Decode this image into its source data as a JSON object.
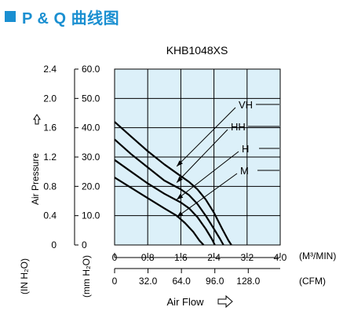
{
  "header": {
    "title": "P & Q 曲线图",
    "accent": "#1a8fd1"
  },
  "chart_data": {
    "type": "line",
    "title": "KHB1048XS",
    "plot_bg": "#dcf0f9",
    "grid": true,
    "xlabel": "Air Flow",
    "ylabel": "Air Pressure",
    "x_units": [
      "(M³/MIN)",
      "(CFM)"
    ],
    "y_units": [
      "(IN H₂O)",
      "(mm H₂O)"
    ],
    "x_ticks_m3min": [
      "0",
      "0.8",
      "1.6",
      "2.4",
      "3.2",
      "4.0"
    ],
    "x_ticks_cfm": [
      "0",
      "32.0",
      "64.0",
      "96.0",
      "128.0"
    ],
    "y_ticks_inh2o": [
      "0",
      "0.4",
      "0.8",
      "1.2",
      "1.6",
      "2.0",
      "2.4"
    ],
    "y_ticks_mmh2o": [
      "0",
      "10.0",
      "20.0",
      "30.0",
      "40.0",
      "50.0",
      "60.0"
    ],
    "xlim": [
      0,
      4.0
    ],
    "ylim": [
      0,
      60.0
    ],
    "series": [
      {
        "name": "VH",
        "x": [
          0,
          0.4,
          0.8,
          1.2,
          1.6,
          1.8,
          2.0,
          2.2,
          2.4,
          2.6,
          2.75,
          2.82
        ],
        "y": [
          42.0,
          37.0,
          32.0,
          27.5,
          23.5,
          21.5,
          19.0,
          15.5,
          11.0,
          5.5,
          1.5,
          0
        ]
      },
      {
        "name": "HH",
        "x": [
          0,
          0.4,
          0.8,
          1.2,
          1.6,
          1.8,
          2.0,
          2.2,
          2.4,
          2.55,
          2.63
        ],
        "y": [
          36.0,
          31.0,
          26.5,
          22.0,
          19.0,
          17.0,
          14.0,
          10.0,
          5.5,
          2.0,
          0
        ]
      },
      {
        "name": "H",
        "x": [
          0,
          0.4,
          0.8,
          1.2,
          1.6,
          1.8,
          2.0,
          2.2,
          2.35,
          2.42
        ],
        "y": [
          29.0,
          25.0,
          21.0,
          17.5,
          14.5,
          12.5,
          9.5,
          5.5,
          2.0,
          0
        ]
      },
      {
        "name": "M",
        "x": [
          0,
          0.4,
          0.8,
          1.2,
          1.5,
          1.7,
          1.9,
          2.05,
          2.15
        ],
        "y": [
          23.0,
          19.5,
          16.0,
          12.5,
          10.0,
          7.5,
          4.5,
          1.5,
          0
        ]
      }
    ],
    "series_color": "#000000",
    "arrow_icon": "hollow-right-arrow-icon",
    "up_arrow_icon": "hollow-up-arrow-icon"
  }
}
